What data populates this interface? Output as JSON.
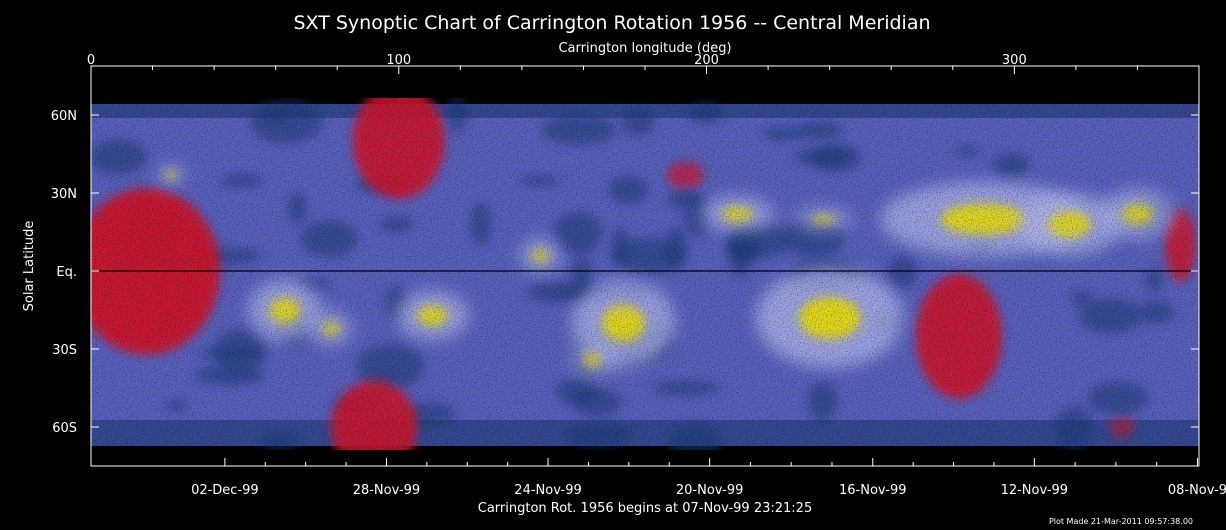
{
  "chart_data": {
    "type": "heatmap",
    "title": "SXT Synoptic Chart of Carrington Rotation 1956 -- Central Meridian",
    "top_axis_label": "Carrington longitude (deg)",
    "top_ticks": [
      {
        "value": 0,
        "label": "0"
      },
      {
        "value": 100,
        "label": "100"
      },
      {
        "value": 200,
        "label": "200"
      },
      {
        "value": 300,
        "label": "300"
      }
    ],
    "xlim": [
      0,
      360
    ],
    "ylabel": "Solar Latitude",
    "y_ticks": [
      {
        "label": "60N",
        "value": 60
      },
      {
        "label": "30N",
        "value": 30
      },
      {
        "label": "Eq.",
        "value": 0
      },
      {
        "label": "30S",
        "value": -30
      },
      {
        "label": "60S",
        "value": -60
      }
    ],
    "bottom_ticks": [
      {
        "label": "02-Dec-99",
        "lon": 43.5
      },
      {
        "label": "28-Nov-99",
        "lon": 96
      },
      {
        "label": "24-Nov-99",
        "lon": 148.5
      },
      {
        "label": "20-Nov-99",
        "lon": 201
      },
      {
        "label": "16-Nov-99",
        "lon": 254
      },
      {
        "label": "12-Nov-99",
        "lon": 306.5
      },
      {
        "label": "08-Nov-9",
        "lon": 359.5
      }
    ],
    "bottom_caption": "Carrington Rot. 1956 begins at 07-Nov-99 23:21:25",
    "plot_made": "Plot Made 21-Mar-2011 09:57:38.00",
    "grid": false,
    "colors": {
      "background": "#000000",
      "quiet_sun": "#5a63c0",
      "coronal_hole": "#d0152d",
      "active_region": "#e6dc1e",
      "noise": "#1e3a78"
    },
    "active_regions": [
      {
        "lon": 63,
        "lat": -15,
        "rx": 5,
        "ry": 5,
        "level": 0.9
      },
      {
        "lon": 78,
        "lat": -22,
        "rx": 3,
        "ry": 3,
        "level": 0.7
      },
      {
        "lon": 111,
        "lat": -17,
        "rx": 5,
        "ry": 4,
        "level": 0.9
      },
      {
        "lon": 146,
        "lat": 6,
        "rx": 3,
        "ry": 3,
        "level": 0.7
      },
      {
        "lon": 173,
        "lat": -20,
        "rx": 7,
        "ry": 7,
        "level": 0.95
      },
      {
        "lon": 163,
        "lat": -34,
        "rx": 3,
        "ry": 3,
        "level": 0.7
      },
      {
        "lon": 210,
        "lat": 22,
        "rx": 5,
        "ry": 3,
        "level": 0.85
      },
      {
        "lon": 238,
        "lat": 20,
        "rx": 4,
        "ry": 2,
        "level": 0.7
      },
      {
        "lon": 240,
        "lat": -18,
        "rx": 10,
        "ry": 8,
        "level": 1.0
      },
      {
        "lon": 290,
        "lat": 20,
        "rx": 14,
        "ry": 6,
        "level": 0.95
      },
      {
        "lon": 318,
        "lat": 18,
        "rx": 7,
        "ry": 5,
        "level": 0.9
      },
      {
        "lon": 340,
        "lat": 22,
        "rx": 5,
        "ry": 4,
        "level": 0.85
      },
      {
        "lon": 26,
        "lat": 37,
        "rx": 2,
        "ry": 2,
        "level": 0.6
      }
    ],
    "coronal_holes": [
      {
        "lon": 18,
        "lat": 0,
        "rx": 24,
        "ry": 32,
        "level": 0.95
      },
      {
        "lon": 100,
        "lat": 50,
        "rx": 15,
        "ry": 22,
        "level": 0.9
      },
      {
        "lon": 92,
        "lat": -60,
        "rx": 14,
        "ry": 18,
        "level": 0.9
      },
      {
        "lon": 193,
        "lat": 37,
        "rx": 6,
        "ry": 5,
        "level": 0.75
      },
      {
        "lon": 282,
        "lat": -25,
        "rx": 14,
        "ry": 24,
        "level": 0.9
      },
      {
        "lon": 354,
        "lat": 10,
        "rx": 5,
        "ry": 14,
        "level": 0.85
      },
      {
        "lon": 335,
        "lat": -60,
        "rx": 4,
        "ry": 4,
        "level": 0.6
      }
    ]
  }
}
